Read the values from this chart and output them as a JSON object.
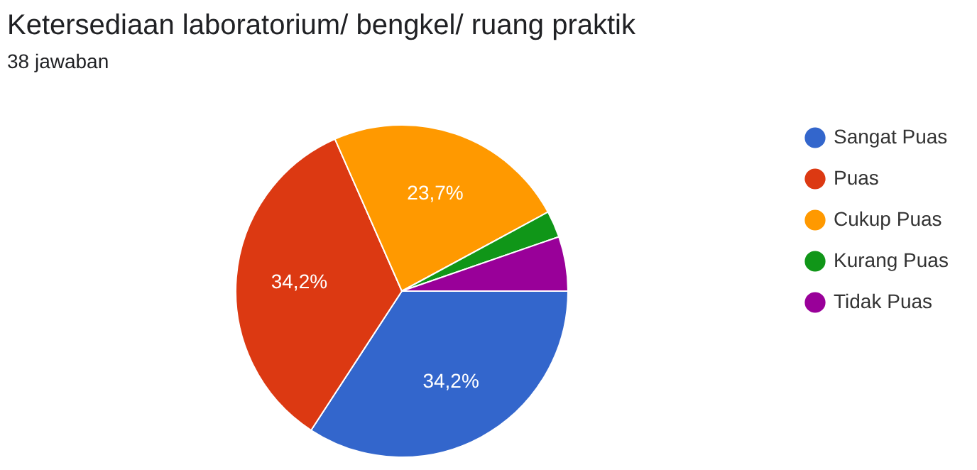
{
  "chart_data": {
    "type": "pie",
    "title": "Ketersediaan laboratorium/ bengkel/ ruang praktik",
    "subtitle": "38 jawaban",
    "categories": [
      "Sangat Puas",
      "Puas",
      "Cukup Puas",
      "Kurang Puas",
      "Tidak Puas"
    ],
    "values": [
      34.2,
      34.2,
      23.7,
      2.6,
      5.3
    ],
    "value_labels": [
      "34,2%",
      "34,2%",
      "23,7%",
      null,
      null
    ],
    "colors": [
      "#3366cc",
      "#dc3912",
      "#ff9900",
      "#109618",
      "#990099"
    ],
    "legend": "right"
  }
}
